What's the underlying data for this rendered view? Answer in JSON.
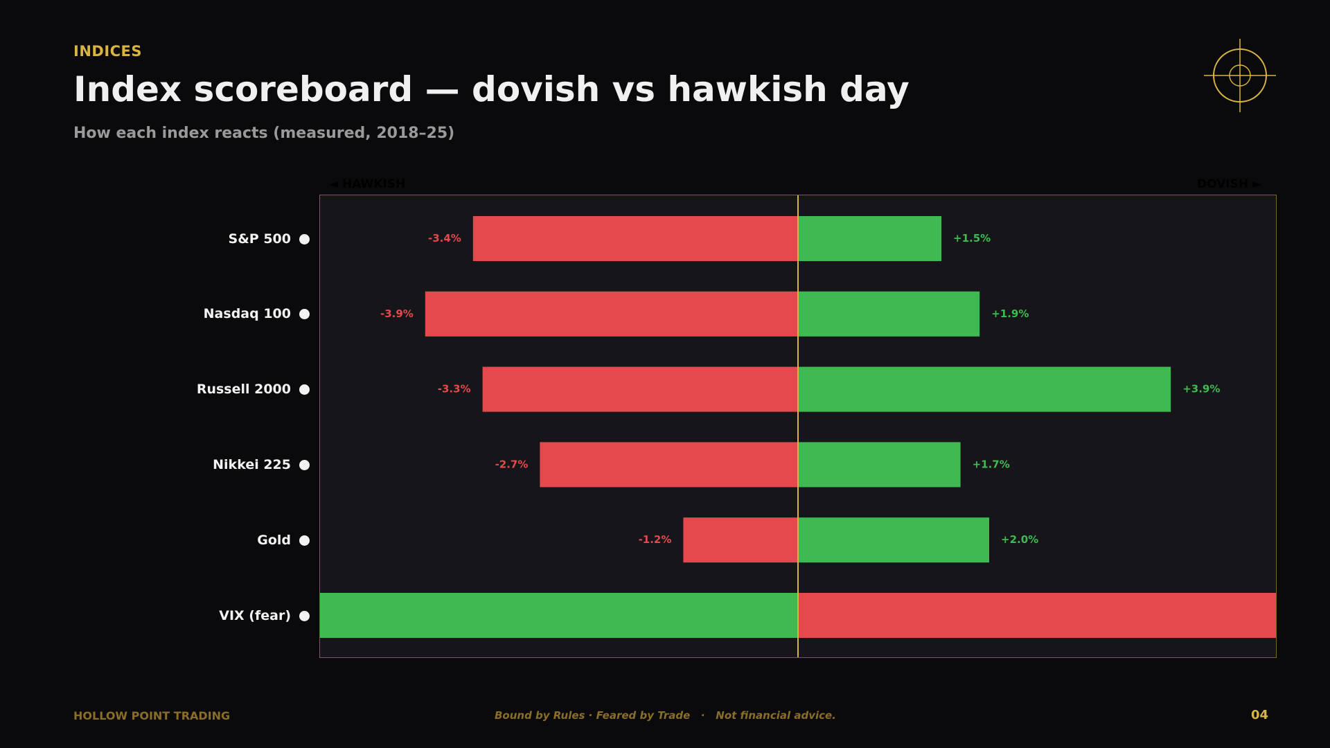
{
  "header": {
    "eyebrow": "INDICES",
    "title": "Index scoreboard — dovish vs hawkish day",
    "subtitle": "How each index reacts (measured, 2018–25)"
  },
  "legend": {
    "hawkish_label": "◄ HAWKISH",
    "dovish_label": "DOVISH ►"
  },
  "colors": {
    "gold": "#d9b443",
    "hawkish_red": "#e5484d",
    "dovish_green": "#3fba53",
    "background": "#0a0a0c"
  },
  "chart_data": {
    "type": "bar",
    "orientation": "horizontal-diverging",
    "categories": [
      "S&P 500",
      "Nasdaq 100",
      "Russell 2000",
      "Nikkei 225",
      "Gold",
      "VIX (fear)"
    ],
    "series": [
      {
        "name": "HAWKISH",
        "values": [
          -3.4,
          -3.9,
          -3.3,
          -2.7,
          -1.2,
          -5.0
        ],
        "labels": [
          "-3.4%",
          "-3.9%",
          "-3.3%",
          "-2.7%",
          "-1.2%",
          ""
        ]
      },
      {
        "name": "DOVISH",
        "values": [
          1.5,
          1.9,
          3.9,
          1.7,
          2.0,
          5.0
        ],
        "labels": [
          "+1.5%",
          "+1.9%",
          "+3.9%",
          "+1.7%",
          "+2.0%",
          ""
        ]
      }
    ],
    "inverted_colors_categories": [
      "VIX (fear)"
    ],
    "xlim": [
      -5,
      5
    ],
    "grid": false,
    "center_line": true
  },
  "footer": {
    "brand": "HOLLOW POINT TRADING",
    "tagline": "Bound by Rules · Feared by Trade   ·   Not financial advice.",
    "page_number": "04"
  }
}
